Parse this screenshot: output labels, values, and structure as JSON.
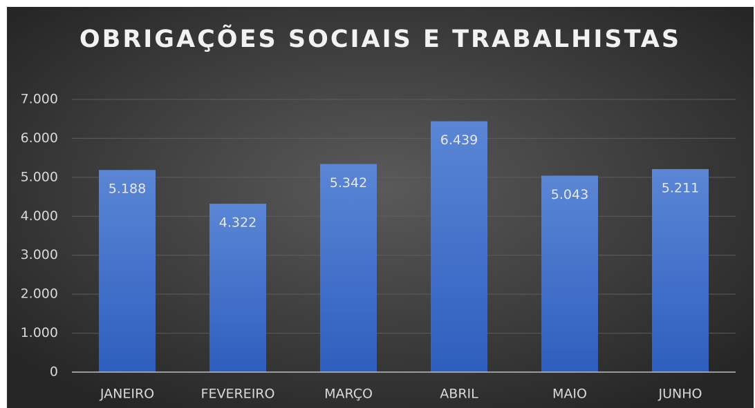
{
  "chart_data": {
    "type": "bar",
    "title": "OBRIGAÇÕES SOCIAIS E TRABALHISTAS",
    "categories": [
      "JANEIRO",
      "FEVEREIRO",
      "MARÇO",
      "ABRIL",
      "MAIO",
      "JUNHO"
    ],
    "values": [
      5188,
      4322,
      5342,
      6439,
      5043,
      5211
    ],
    "value_labels": [
      "5.188",
      "4.322",
      "5.342",
      "6.439",
      "5.043",
      "5.211"
    ],
    "color": "#4472c4",
    "ylim": [
      0,
      7000
    ],
    "yticks": [
      0,
      {
        "value": 1000,
        "label": "1.000"
      },
      {
        "value": 2000,
        "label": "2.000"
      },
      {
        "value": 3000,
        "label": "3.000"
      },
      {
        "value": 4000,
        "label": "4.000"
      },
      {
        "value": 5000,
        "label": "5.000"
      },
      {
        "value": 6000,
        "label": "6.000"
      },
      {
        "value": 7000,
        "label": "7.000"
      }
    ],
    "grid": true
  }
}
